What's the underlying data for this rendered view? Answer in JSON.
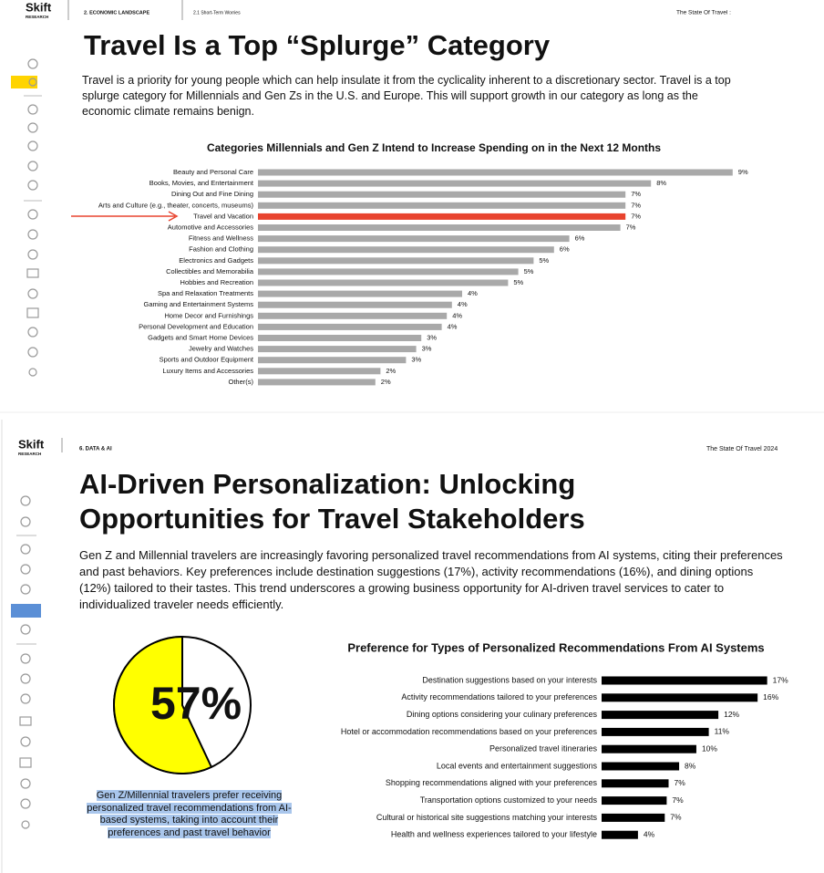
{
  "pages": [
    {
      "header": {
        "logo": "Skift",
        "logo_sub": "RESEARCH",
        "section": "2. ECONOMIC LANDSCAPE",
        "subsection": "2.1 Short-Term Worries",
        "report": "The State Of Travel :"
      },
      "title": "Travel Is a Top “Splurge” Category",
      "body": "Travel is a priority for young people which can help insulate it from the cyclicality inherent to a discretionary sector. Travel is a top splurge category for Millennials and Gen Zs in the U.S. and Europe. This will support growth in our category as long as the economic climate remains benign.",
      "chart_data": {
        "type": "bar",
        "orientation": "horizontal",
        "title": "Categories Millennials and Gen Z Intend to Increase Spending on in the Next 12 Months",
        "categories": [
          "Beauty and Personal Care",
          "Books, Movies, and Entertainment",
          "Dining Out and Fine Dining",
          "Arts and Culture (e.g., theater, concerts, museums)",
          "Travel and Vacation",
          "Automotive and Accessories",
          "Fitness and Wellness",
          "Fashion and Clothing",
          "Electronics and Gadgets",
          "Collectibles and Memorabilia",
          "Hobbies and Recreation",
          "Spa and Relaxation Treatments",
          "Gaming and Entertainment Systems",
          "Home Decor and Furnishings",
          "Personal Development and Education",
          "Gadgets and Smart Home Devices",
          "Jewelry and Watches",
          "Sports and Outdoor Equipment",
          "Luxury Items and Accessories",
          "Other(s)"
        ],
        "values": [
          9.3,
          7.7,
          7.2,
          7.2,
          7.2,
          7.1,
          6.1,
          5.8,
          5.4,
          5.1,
          4.9,
          4.0,
          3.8,
          3.7,
          3.6,
          3.2,
          3.1,
          2.9,
          2.4,
          2.3
        ],
        "value_labels": [
          "9%",
          "8%",
          "7%",
          "7%",
          "7%",
          "7%",
          "6%",
          "6%",
          "5%",
          "5%",
          "5%",
          "4%",
          "4%",
          "4%",
          "4%",
          "3%",
          "3%",
          "3%",
          "2%",
          "2%"
        ],
        "colors": [
          "#a9a9a9",
          "#a9a9a9",
          "#a9a9a9",
          "#a9a9a9",
          "#e8432e",
          "#a9a9a9",
          "#a9a9a9",
          "#a9a9a9",
          "#a9a9a9",
          "#a9a9a9",
          "#a9a9a9",
          "#a9a9a9",
          "#a9a9a9",
          "#a9a9a9",
          "#a9a9a9",
          "#a9a9a9",
          "#a9a9a9",
          "#a9a9a9",
          "#a9a9a9",
          "#a9a9a9"
        ]
      }
    },
    {
      "header": {
        "logo": "Skift",
        "logo_sub": "RESEARCH",
        "section": "6. DATA & AI",
        "report": "The State Of Travel 2024"
      },
      "title_lines": [
        "AI-Driven Personalization: Unlocking",
        "Opportunities for Travel Stakeholders"
      ],
      "body": "Gen Z and Millennial travelers are increasingly favoring personalized travel recommendations from AI systems, citing their preferences and past behaviors. Key preferences include destination suggestions (17%), activity recommendations (16%), and dining options (12%) tailored to their tastes. This trend underscores a growing business opportunity for AI-driven travel services to cater to individualized traveler needs efficiently.",
      "chart_data": [
        {
          "type": "pie",
          "values": [
            57
          ],
          "value_labels": [
            "57%"
          ],
          "colors": [
            "#ffff00"
          ],
          "caption": "Gen Z/Millennial travelers prefer receiving personalized travel recommendations from AI-based systems, taking into account their preferences and past travel behavior"
        },
        {
          "type": "bar",
          "orientation": "horizontal",
          "title": "Preference for Types of Personalized Recommendations From AI Systems",
          "categories": [
            "Destination suggestions based on your interests",
            "Activity recommendations tailored to your preferences",
            "Dining options considering your culinary preferences",
            "Hotel or accommodation recommendations based on your preferences",
            "Personalized travel itineraries",
            "Local events and entertainment suggestions",
            "Shopping recommendations aligned with your preferences",
            "Transportation options customized to your needs",
            "Cultural or historical site suggestions matching your interests",
            "Health and wellness experiences tailored to your lifestyle"
          ],
          "values": [
            17.3,
            16.3,
            12.2,
            11.2,
            9.9,
            8.1,
            7.0,
            6.8,
            6.6,
            3.8
          ],
          "value_labels": [
            "17%",
            "16%",
            "12%",
            "11%",
            "10%",
            "8%",
            "7%",
            "7%",
            "7%",
            "4%"
          ],
          "color": "#000000"
        }
      ]
    }
  ]
}
